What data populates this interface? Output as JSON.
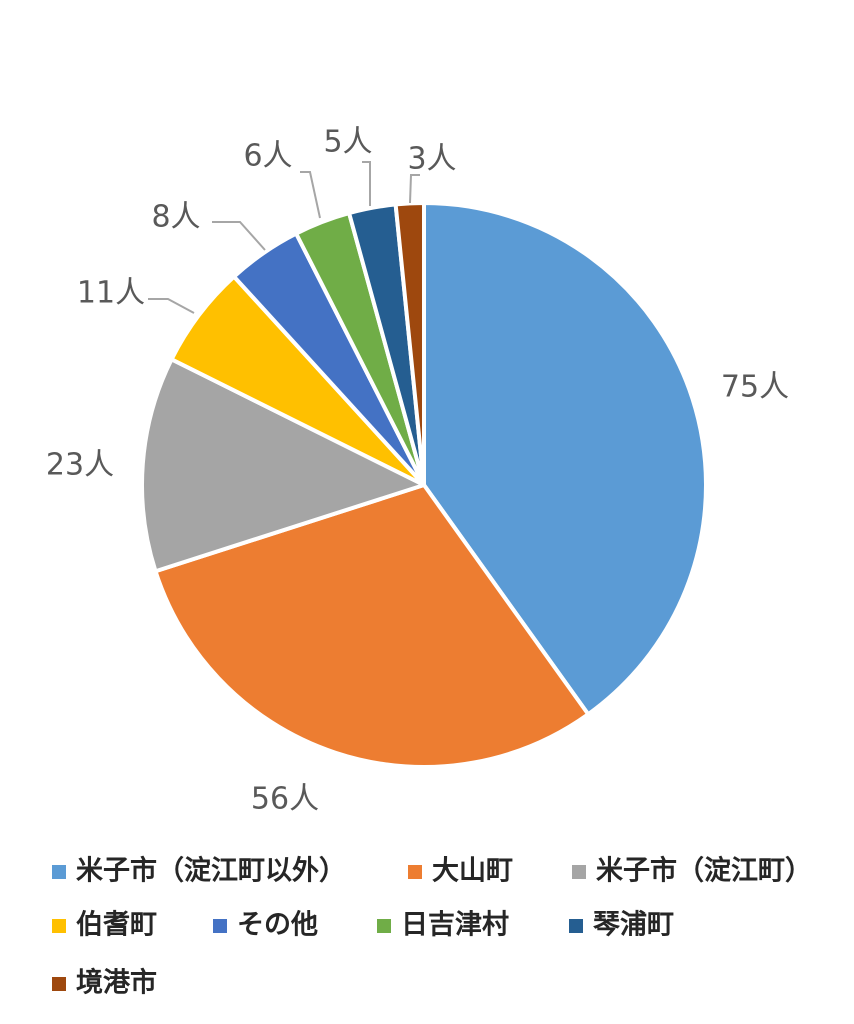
{
  "chart_data": {
    "type": "pie",
    "unit_suffix": "人",
    "slices": [
      {
        "label": "米子市（淀江町以外）",
        "value": 75,
        "value_label": "75人",
        "color": "#5B9BD5"
      },
      {
        "label": "大山町",
        "value": 56,
        "value_label": "56人",
        "color": "#ED7D31"
      },
      {
        "label": "米子市（淀江町）",
        "value": 23,
        "value_label": "23人",
        "color": "#A5A5A5"
      },
      {
        "label": "伯耆町",
        "value": 11,
        "value_label": "11人",
        "color": "#FFC000"
      },
      {
        "label": "その他",
        "value": 8,
        "value_label": "8人",
        "color": "#4472C4"
      },
      {
        "label": "日吉津村",
        "value": 6,
        "value_label": "6人",
        "color": "#70AD47"
      },
      {
        "label": "琴浦町",
        "value": 5,
        "value_label": "5人",
        "color": "#255E91"
      },
      {
        "label": "境港市",
        "value": 3,
        "value_label": "3人",
        "color": "#9E480E"
      }
    ],
    "legend_position": "bottom",
    "start_angle_deg": 0,
    "direction": "clockwise"
  }
}
